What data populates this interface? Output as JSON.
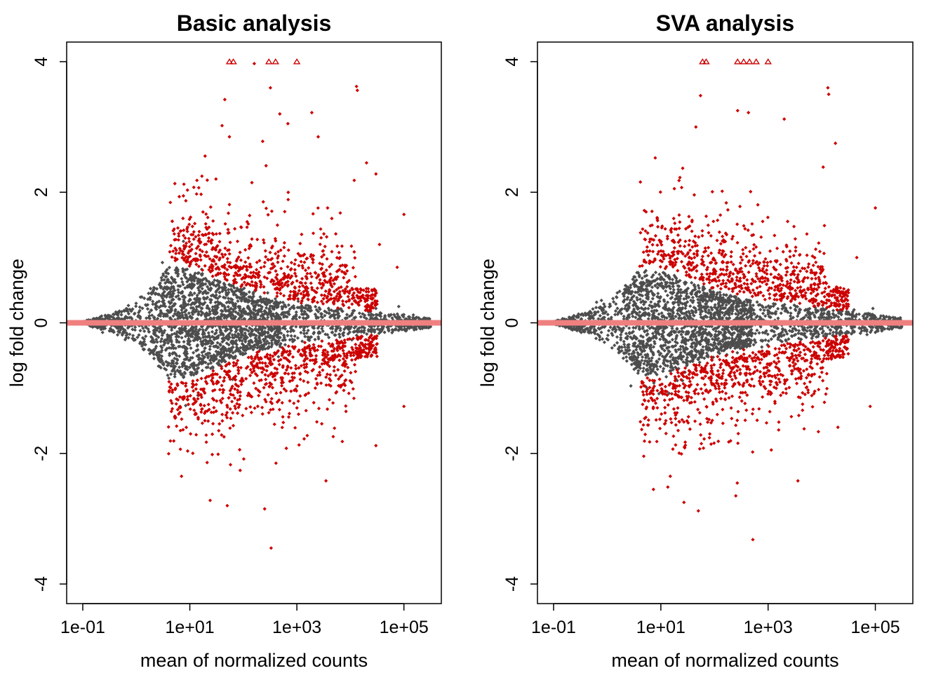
{
  "chart_data": [
    {
      "type": "scatter",
      "title": "Basic analysis",
      "xlabel": "mean of normalized counts",
      "ylabel": "log fold change",
      "x_scale": "log10",
      "xlim": [
        0.05,
        500000
      ],
      "ylim": [
        -4.3,
        4.3
      ],
      "x_ticks": [
        {
          "value": 0.1,
          "label": "1e-01"
        },
        {
          "value": 10,
          "label": "1e+01"
        },
        {
          "value": 1000,
          "label": "1e+03"
        },
        {
          "value": 100000,
          "label": "1e+05"
        }
      ],
      "y_ticks": [
        {
          "value": -4,
          "label": "-4"
        },
        {
          "value": -2,
          "label": "-2"
        },
        {
          "value": 0,
          "label": "0"
        },
        {
          "value": 2,
          "label": "2"
        },
        {
          "value": 4,
          "label": "4"
        }
      ],
      "reference_line": {
        "y": 0,
        "color": "#f08080"
      },
      "colors": {
        "not_significant": "#4d4d4d",
        "significant": "#cc0000",
        "reference": "#f08080"
      },
      "series": [
        {
          "category": "not significant",
          "color": "#4d4d4d",
          "marker": "diamond",
          "envelope": [
            {
              "x": 0.1,
              "y": 0.02
            },
            {
              "x": 0.2,
              "y": 0.09
            },
            {
              "x": 0.5,
              "y": 0.2
            },
            {
              "x": 1,
              "y": 0.35
            },
            {
              "x": 2,
              "y": 0.55
            },
            {
              "x": 4,
              "y": 0.85
            },
            {
              "x": 8,
              "y": 0.85
            },
            {
              "x": 20,
              "y": 0.75
            },
            {
              "x": 50,
              "y": 0.6
            },
            {
              "x": 200,
              "y": 0.42
            },
            {
              "x": 1000,
              "y": 0.3
            },
            {
              "x": 10000,
              "y": 0.2
            },
            {
              "x": 100000,
              "y": 0.13
            },
            {
              "x": 400000,
              "y": 0.06
            }
          ],
          "points": [
            {
              "x": 0.08,
              "y": 0.01
            },
            {
              "x": 0.12,
              "y": -0.02
            },
            {
              "x": 30000,
              "y": 0.22
            },
            {
              "x": 60000,
              "y": -0.15
            },
            {
              "x": 80000,
              "y": 0.25
            },
            {
              "x": 150000,
              "y": 0.12
            },
            {
              "x": 250000,
              "y": -0.05
            },
            {
              "x": 300000,
              "y": 0.03
            }
          ]
        },
        {
          "category": "significant",
          "color": "#cc0000",
          "marker": "diamond",
          "points": [
            {
              "x": 45,
              "y": 3.42
            },
            {
              "x": 40,
              "y": 3.02
            },
            {
              "x": 320,
              "y": 3.6
            },
            {
              "x": 480,
              "y": 3.2
            },
            {
              "x": 680,
              "y": 3.05
            },
            {
              "x": 1900,
              "y": 3.22
            },
            {
              "x": 13000,
              "y": 3.62
            },
            {
              "x": 13500,
              "y": 3.56
            },
            {
              "x": 55,
              "y": 2.85
            },
            {
              "x": 230,
              "y": 2.78
            },
            {
              "x": 2500,
              "y": 2.85
            },
            {
              "x": 20000,
              "y": 2.45
            },
            {
              "x": 30000,
              "y": 2.28
            },
            {
              "x": 100000,
              "y": 1.66
            },
            {
              "x": 35000,
              "y": 1.2
            },
            {
              "x": 75000,
              "y": 0.85
            },
            {
              "x": 50,
              "y": -2.8
            },
            {
              "x": 24,
              "y": -2.72
            },
            {
              "x": 250,
              "y": -2.85
            },
            {
              "x": 330,
              "y": -3.45
            },
            {
              "x": 3500,
              "y": -2.42
            },
            {
              "x": 30000,
              "y": -1.88
            },
            {
              "x": 100000,
              "y": -1.28
            },
            {
              "x": 7,
              "y": -2.35
            }
          ],
          "overflow_up": [
            {
              "x": 55,
              "y": 4
            },
            {
              "x": 65,
              "y": 4
            },
            {
              "x": 300,
              "y": 4
            },
            {
              "x": 400,
              "y": 4
            },
            {
              "x": 1000,
              "y": 4
            }
          ],
          "overflow_points": [
            {
              "x": 160,
              "y": 3.97
            }
          ]
        }
      ]
    },
    {
      "type": "scatter",
      "title": "SVA analysis",
      "xlabel": "mean of normalized counts",
      "ylabel": "log fold change",
      "x_scale": "log10",
      "xlim": [
        0.05,
        500000
      ],
      "ylim": [
        -4.3,
        4.3
      ],
      "x_ticks": [
        {
          "value": 0.1,
          "label": "1e-01"
        },
        {
          "value": 10,
          "label": "1e+01"
        },
        {
          "value": 1000,
          "label": "1e+03"
        },
        {
          "value": 100000,
          "label": "1e+05"
        }
      ],
      "y_ticks": [
        {
          "value": -4,
          "label": "-4"
        },
        {
          "value": -2,
          "label": "-2"
        },
        {
          "value": 0,
          "label": "0"
        },
        {
          "value": 2,
          "label": "2"
        },
        {
          "value": 4,
          "label": "4"
        }
      ],
      "reference_line": {
        "y": 0,
        "color": "#f08080"
      },
      "colors": {
        "not_significant": "#4d4d4d",
        "significant": "#cc0000",
        "reference": "#f08080"
      },
      "series": [
        {
          "category": "not significant",
          "color": "#4d4d4d",
          "marker": "diamond",
          "envelope": [
            {
              "x": 0.1,
              "y": 0.02
            },
            {
              "x": 0.2,
              "y": 0.09
            },
            {
              "x": 0.5,
              "y": 0.2
            },
            {
              "x": 1,
              "y": 0.35
            },
            {
              "x": 2,
              "y": 0.55
            },
            {
              "x": 4,
              "y": 0.8
            },
            {
              "x": 8,
              "y": 0.8
            },
            {
              "x": 20,
              "y": 0.72
            },
            {
              "x": 50,
              "y": 0.58
            },
            {
              "x": 200,
              "y": 0.42
            },
            {
              "x": 1000,
              "y": 0.32
            },
            {
              "x": 10000,
              "y": 0.22
            },
            {
              "x": 100000,
              "y": 0.14
            },
            {
              "x": 400000,
              "y": 0.06
            }
          ],
          "points": [
            {
              "x": 0.08,
              "y": 0.01
            },
            {
              "x": 0.12,
              "y": -0.02
            },
            {
              "x": 40000,
              "y": 0.2
            },
            {
              "x": 70000,
              "y": -0.18
            },
            {
              "x": 90000,
              "y": 0.22
            },
            {
              "x": 180000,
              "y": 0.05
            },
            {
              "x": 280000,
              "y": 0.02
            }
          ]
        },
        {
          "category": "significant",
          "color": "#cc0000",
          "marker": "diamond",
          "points": [
            {
              "x": 55,
              "y": 3.48
            },
            {
              "x": 45,
              "y": 3.0
            },
            {
              "x": 270,
              "y": 3.25
            },
            {
              "x": 430,
              "y": 3.22
            },
            {
              "x": 2000,
              "y": 3.12
            },
            {
              "x": 13000,
              "y": 3.6
            },
            {
              "x": 13500,
              "y": 3.5
            },
            {
              "x": 18000,
              "y": 2.75
            },
            {
              "x": 100000,
              "y": 1.76
            },
            {
              "x": 45000,
              "y": 1.0
            },
            {
              "x": 80000,
              "y": -1.28
            },
            {
              "x": 20000,
              "y": -1.6
            },
            {
              "x": 50,
              "y": -2.88
            },
            {
              "x": 27,
              "y": -2.75
            },
            {
              "x": 520,
              "y": -3.32
            },
            {
              "x": 3600,
              "y": -2.42
            },
            {
              "x": 250,
              "y": -2.65
            },
            {
              "x": 15,
              "y": -2.35
            }
          ],
          "overflow_up": [
            {
              "x": 60,
              "y": 4
            },
            {
              "x": 70,
              "y": 4
            },
            {
              "x": 270,
              "y": 4
            },
            {
              "x": 350,
              "y": 4
            },
            {
              "x": 450,
              "y": 4
            },
            {
              "x": 600,
              "y": 4
            },
            {
              "x": 1000,
              "y": 4
            }
          ],
          "overflow_points": []
        }
      ]
    }
  ]
}
